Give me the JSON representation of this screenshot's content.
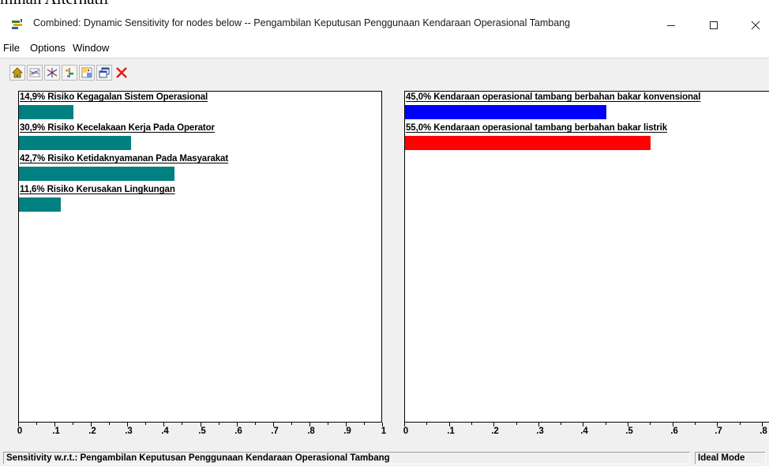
{
  "document_fragment": "mihan Alternatif",
  "window": {
    "title": "Combined: Dynamic Sensitivity for nodes below -- Pengambilan Keputusan Penggunaan Kendaraan Operasional Tambang",
    "minimize_glyph": "—",
    "maximize_glyph": "☐",
    "close_glyph": "✕"
  },
  "menu": [
    "File",
    "Options",
    "Window"
  ],
  "toolbar": [
    "home-icon",
    "performance-graph-icon",
    "gradient-icon",
    "head-to-head-icon",
    "two-dim-icon",
    "windows-icon",
    "close-red-icon"
  ],
  "criteria": {
    "items": [
      {
        "label": "14,9% Risiko Kegagalan Sistem Operasional",
        "value": 0.149
      },
      {
        "label": "30,9% Risiko Kecelakaan Kerja Pada Operator",
        "value": 0.309
      },
      {
        "label": "42,7% Risiko Ketidaknyamanan Pada Masyarakat",
        "value": 0.427
      },
      {
        "label": "11,6% Risiko Kerusakan Lingkungan",
        "value": 0.116
      }
    ],
    "bar_color": "#008080",
    "axis_labels": [
      "0",
      ".1",
      ".2",
      ".3",
      ".4",
      ".5",
      ".6",
      ".7",
      ".8",
      ".9",
      "1"
    ]
  },
  "alternatives": {
    "items": [
      {
        "label": "45,0% Kendaraan operasional tambang berbahan bakar konvensional",
        "value": 0.45,
        "color": "#0000ff"
      },
      {
        "label": "55,0% Kendaraan operasional tambang berbahan bakar listrik",
        "value": 0.55,
        "color": "#ff0000"
      }
    ],
    "axis_labels": [
      "0",
      ".1",
      ".2",
      ".3",
      ".4",
      ".5",
      ".6",
      ".7",
      ".8"
    ]
  },
  "status": {
    "left": "Sensitivity w.r.t.: Pengambilan Keputusan Penggunaan Kendaraan Operasional Tambang",
    "right": "Ideal Mode"
  }
}
